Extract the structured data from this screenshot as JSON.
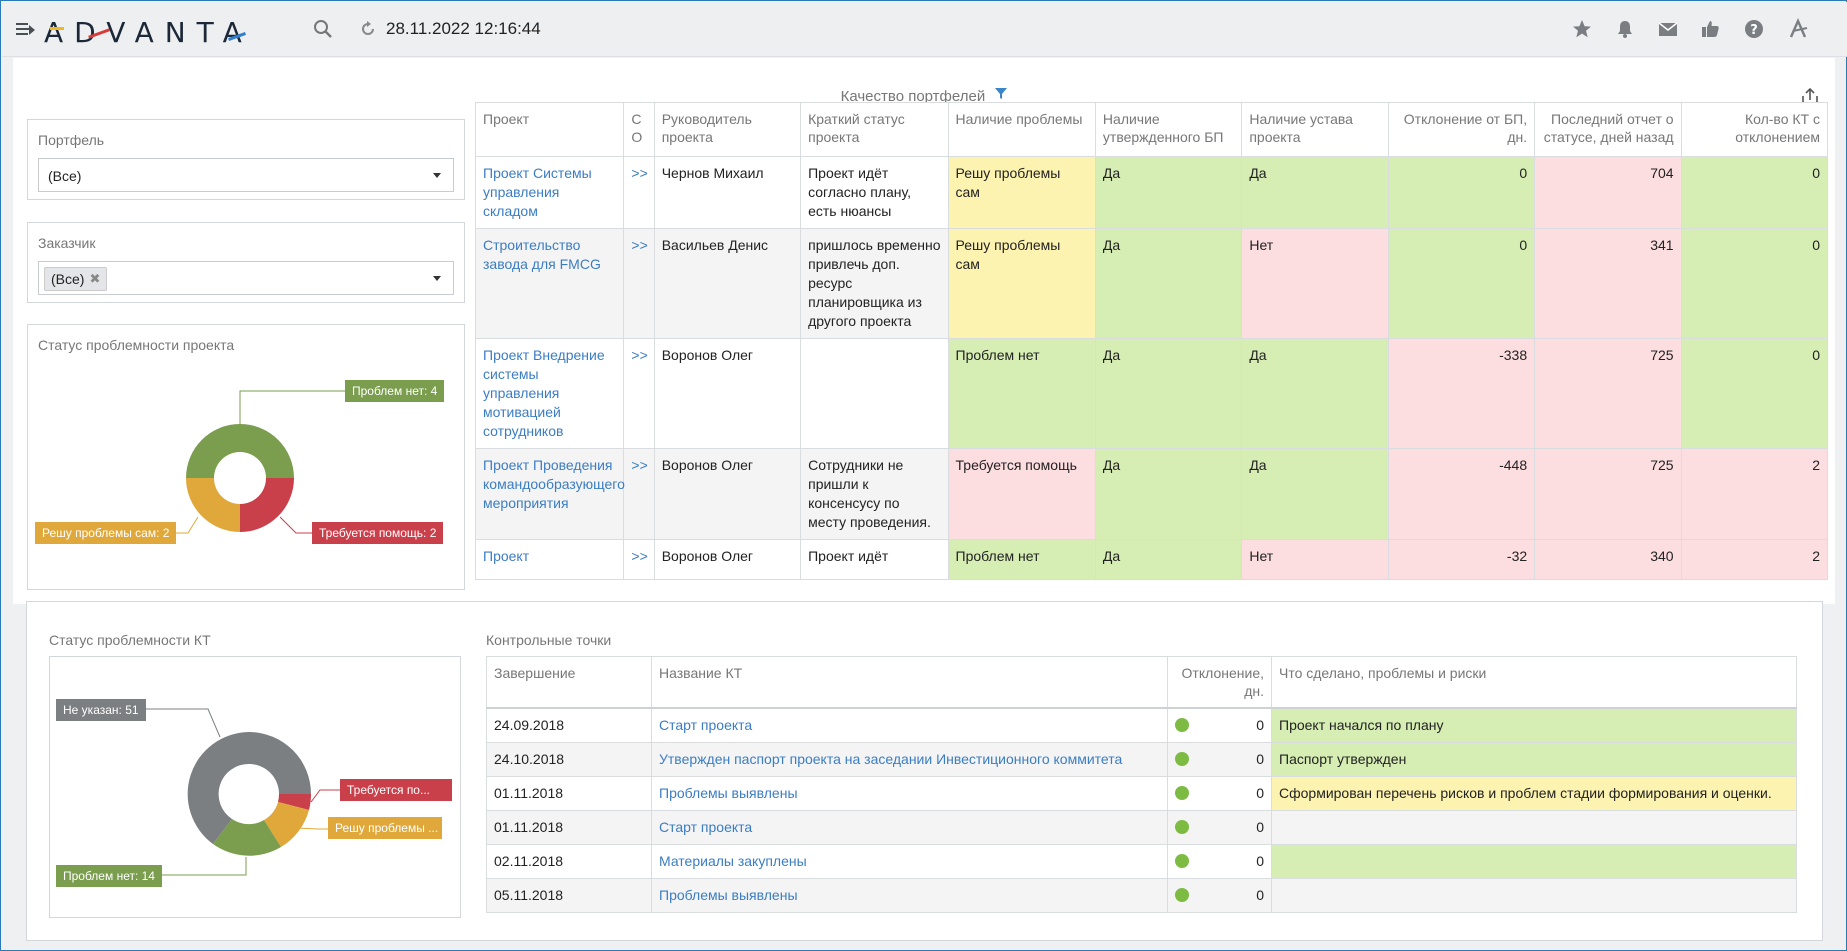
{
  "header": {
    "logo": "ADVANTA",
    "timestamp": "28.11.2022 12:16:44"
  },
  "page": {
    "title": "Качество портфелей"
  },
  "filters": {
    "portfolio_label": "Портфель",
    "portfolio_value": "(Все)",
    "customer_label": "Заказчик",
    "customer_tag": "(Все)"
  },
  "project_status_chart": {
    "title": "Статус проблемности проекта",
    "labels": [
      "Проблем нет: 4",
      "Требуется помощь: 2",
      "Решу проблемы сам: 2"
    ],
    "colors": {
      "ok": "#7a9e4e",
      "help": "#c9404b",
      "self": "#e0a83a"
    }
  },
  "projects": {
    "columns": [
      "Проект",
      "С О",
      "Руководитель проекта",
      "Краткий статус проекта",
      "Наличие проблемы",
      "Наличие утвержденного БП",
      "Наличие устава проекта",
      "Отклонение от БП, дн.",
      "Последний отчет о статусе, дней назад",
      "Кол-во КТ с отклонением"
    ],
    "rows": [
      {
        "name": "Проект Системы управления складом",
        "so": ">>",
        "manager": "Чернов Михаил",
        "status": "Проект идёт согласно плану, есть нюансы",
        "problem": "Решу проблемы сам",
        "bp": "Да",
        "charter": "Да",
        "dev": "0",
        "report": "704",
        "kt": "0"
      },
      {
        "name": "Строительство завода для FMCG",
        "so": ">>",
        "manager": "Васильев Денис",
        "status": "пришлось временно привлечь доп. ресурс планировщика из другого проекта",
        "problem": "Решу проблемы сам",
        "bp": "Да",
        "charter": "Нет",
        "dev": "0",
        "report": "341",
        "kt": "0"
      },
      {
        "name": "Проект Внедрение системы управления мотивацией сотрудников",
        "so": ">>",
        "manager": "Воронов Олег",
        "status": "",
        "problem": "Проблем нет",
        "bp": "Да",
        "charter": "Да",
        "dev": "-338",
        "report": "725",
        "kt": "0"
      },
      {
        "name": "Проект Проведения командообразующего мероприятия",
        "so": ">>",
        "manager": "Воронов Олег",
        "status": "Сотрудники не пришли к консенсусу по месту проведения.",
        "problem": "Требуется помощь",
        "bp": "Да",
        "charter": "Да",
        "dev": "-448",
        "report": "725",
        "kt": "2"
      },
      {
        "name": "Проект",
        "so": ">>",
        "manager": "Воронов Олег",
        "status": "Проект идёт",
        "problem": "Проблем нет",
        "bp": "Да",
        "charter": "Нет",
        "dev": "-32",
        "report": "340",
        "kt": "2"
      }
    ]
  },
  "kt_status_chart": {
    "title": "Статус проблемности КТ",
    "labels": [
      "Не указан: 51",
      "Требуется по...",
      "Решу проблемы ...",
      "Проблем нет: 14"
    ],
    "colors": {
      "none": "#7b7f82",
      "help": "#c9404b",
      "self": "#e0a83a",
      "ok": "#7a9e4e"
    }
  },
  "kt_table": {
    "title": "Контрольные точки",
    "columns": [
      "Завершение",
      "Название КТ",
      "Отклонение, дн.",
      "Что сделано, проблемы и риски"
    ],
    "rows": [
      {
        "date": "24.09.2018",
        "name": "Старт проекта",
        "dev": "0",
        "note": "Проект начался по плану",
        "color": "g"
      },
      {
        "date": "24.10.2018",
        "name": "Утвержден паспорт проекта на заседании Инвестиционного коммитета",
        "dev": "0",
        "note": "Паспорт утвержден",
        "color": "g"
      },
      {
        "date": "01.11.2018",
        "name": "Проблемы выявлены",
        "dev": "0",
        "note": "Сформирован перечень рисков и проблем стадии формирования и оценки.",
        "color": "y"
      },
      {
        "date": "01.11.2018",
        "name": "Старт проекта",
        "dev": "0",
        "note": "",
        "color": ""
      },
      {
        "date": "02.11.2018",
        "name": "Материалы закуплены",
        "dev": "0",
        "note": "",
        "color": "g"
      },
      {
        "date": "05.11.2018",
        "name": "Проблемы выявлены",
        "dev": "0",
        "note": "",
        "color": ""
      }
    ]
  }
}
